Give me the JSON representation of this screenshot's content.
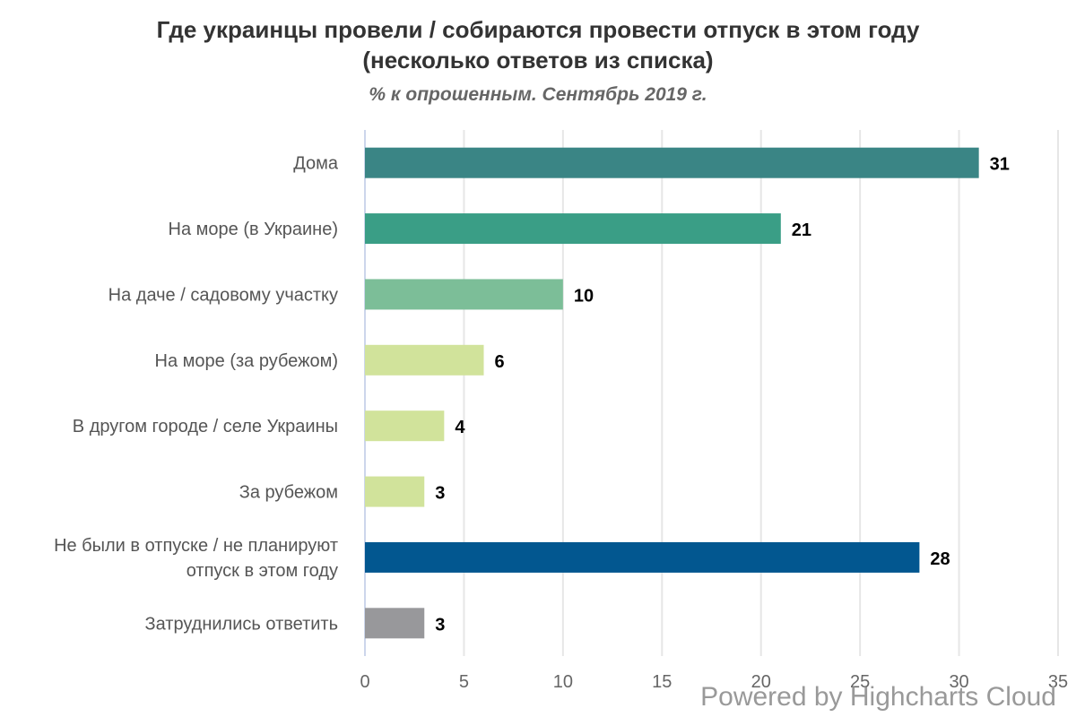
{
  "chart_data": {
    "type": "bar",
    "orientation": "horizontal",
    "title": "Где украинцы провели / собираются провести отпуск в этом году (несколько ответов из списка)",
    "subtitle": "% к опрошенным. Сентябрь 2019 г.",
    "categories": [
      "Дома",
      "На море (в Украине)",
      "На даче / садовому участку",
      "На море (за рубежом)",
      "В другом городе / селе Украины",
      "За рубежом",
      "Не были в отпуске / не планируют отпуск в этом году",
      "Затруднились ответить"
    ],
    "category_lines": [
      [
        "Дома"
      ],
      [
        "На море (в Украине)"
      ],
      [
        "На даче / садовому участку"
      ],
      [
        "На море (за рубежом)"
      ],
      [
        "В другом городе / селе Украины"
      ],
      [
        "За рубежом"
      ],
      [
        "Не были в отпуске / не планируют",
        "отпуск в этом году"
      ],
      [
        "Затруднились ответить"
      ]
    ],
    "values": [
      31,
      21,
      10,
      6,
      4,
      3,
      28,
      3
    ],
    "colors": [
      "#3a8585",
      "#3a9e86",
      "#7cbe98",
      "#d1e39b",
      "#d1e39b",
      "#d1e39b",
      "#025790",
      "#98989b"
    ],
    "xlim": [
      0,
      35
    ],
    "x_ticks": [
      0,
      5,
      10,
      15,
      20,
      25,
      30,
      35
    ],
    "grid": true,
    "data_labels": true,
    "legend": false
  },
  "credits": "Powered by Highcharts Cloud"
}
